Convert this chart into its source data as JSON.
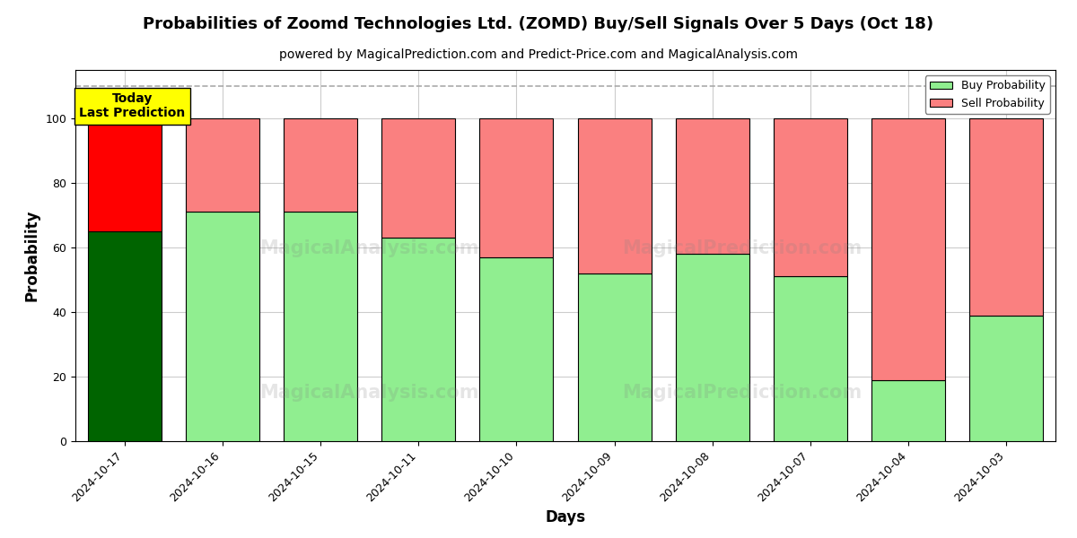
{
  "title": "Probabilities of Zoomd Technologies Ltd. (ZOMD) Buy/Sell Signals Over 5 Days (Oct 18)",
  "subtitle": "powered by MagicalPrediction.com and Predict-Price.com and MagicalAnalysis.com",
  "xlabel": "Days",
  "ylabel": "Probability",
  "dates": [
    "2024-10-17",
    "2024-10-16",
    "2024-10-15",
    "2024-10-11",
    "2024-10-10",
    "2024-10-09",
    "2024-10-08",
    "2024-10-07",
    "2024-10-04",
    "2024-10-03"
  ],
  "buy_probs": [
    65,
    71,
    71,
    63,
    57,
    52,
    58,
    51,
    19,
    39
  ],
  "sell_probs": [
    35,
    29,
    29,
    37,
    43,
    48,
    42,
    49,
    81,
    61
  ],
  "buy_color_today": "#006400",
  "sell_color_today": "#FF0000",
  "buy_color_rest": "#90EE90",
  "sell_color_rest": "#FA8080",
  "bar_edge_color": "black",
  "bar_edge_width": 0.8,
  "ylim": [
    0,
    115
  ],
  "yticks": [
    0,
    20,
    40,
    60,
    80,
    100
  ],
  "dashed_line_y": 110,
  "dashed_line_color": "#AAAAAA",
  "grid_color": "#CCCCCC",
  "annotation_text": "Today\nLast Prediction",
  "annotation_bg": "#FFFF00",
  "legend_buy_label": "Buy Probability",
  "legend_sell_label": "Sell Probability",
  "legend_buy_color": "#90EE90",
  "legend_sell_color": "#FA8080",
  "title_fontsize": 13,
  "subtitle_fontsize": 10,
  "label_fontsize": 12,
  "tick_fontsize": 9,
  "bar_width": 0.75
}
